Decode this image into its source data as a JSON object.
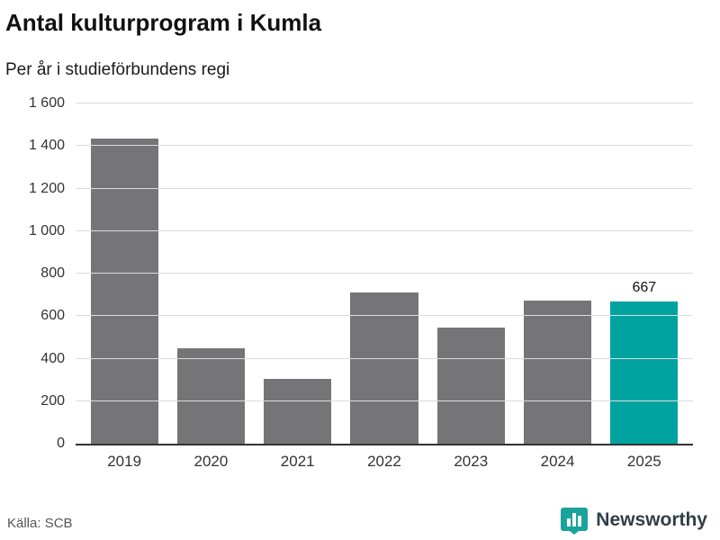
{
  "header": {
    "title": "Antal kulturprogram i Kumla",
    "subtitle": "Per år i studieförbundens regi"
  },
  "footer": {
    "source": "Källa: SCB",
    "brand": "Newsworthy"
  },
  "colors": {
    "bar": "#757578",
    "highlight": "#00a3a0",
    "grid": "#dcdcdc",
    "axis": "#333333",
    "brand_teal": "#1aa39b"
  },
  "chart_data": {
    "type": "bar",
    "title": "Antal kulturprogram i Kumla",
    "subtitle": "Per år i studieförbundens regi",
    "categories": [
      "2019",
      "2020",
      "2021",
      "2022",
      "2023",
      "2024",
      "2025"
    ],
    "values": [
      1435,
      450,
      305,
      710,
      545,
      675,
      667
    ],
    "highlight_index": 6,
    "data_labels": {
      "6": "667"
    },
    "xlabel": "",
    "ylabel": "",
    "ylim": [
      0,
      1600
    ],
    "ytick_step": 200,
    "ytick_labels": [
      "0",
      "200",
      "400",
      "600",
      "800",
      "1 000",
      "1 200",
      "1 400",
      "1 600"
    ],
    "grid": true,
    "legend": false,
    "source": "Källa: SCB"
  }
}
